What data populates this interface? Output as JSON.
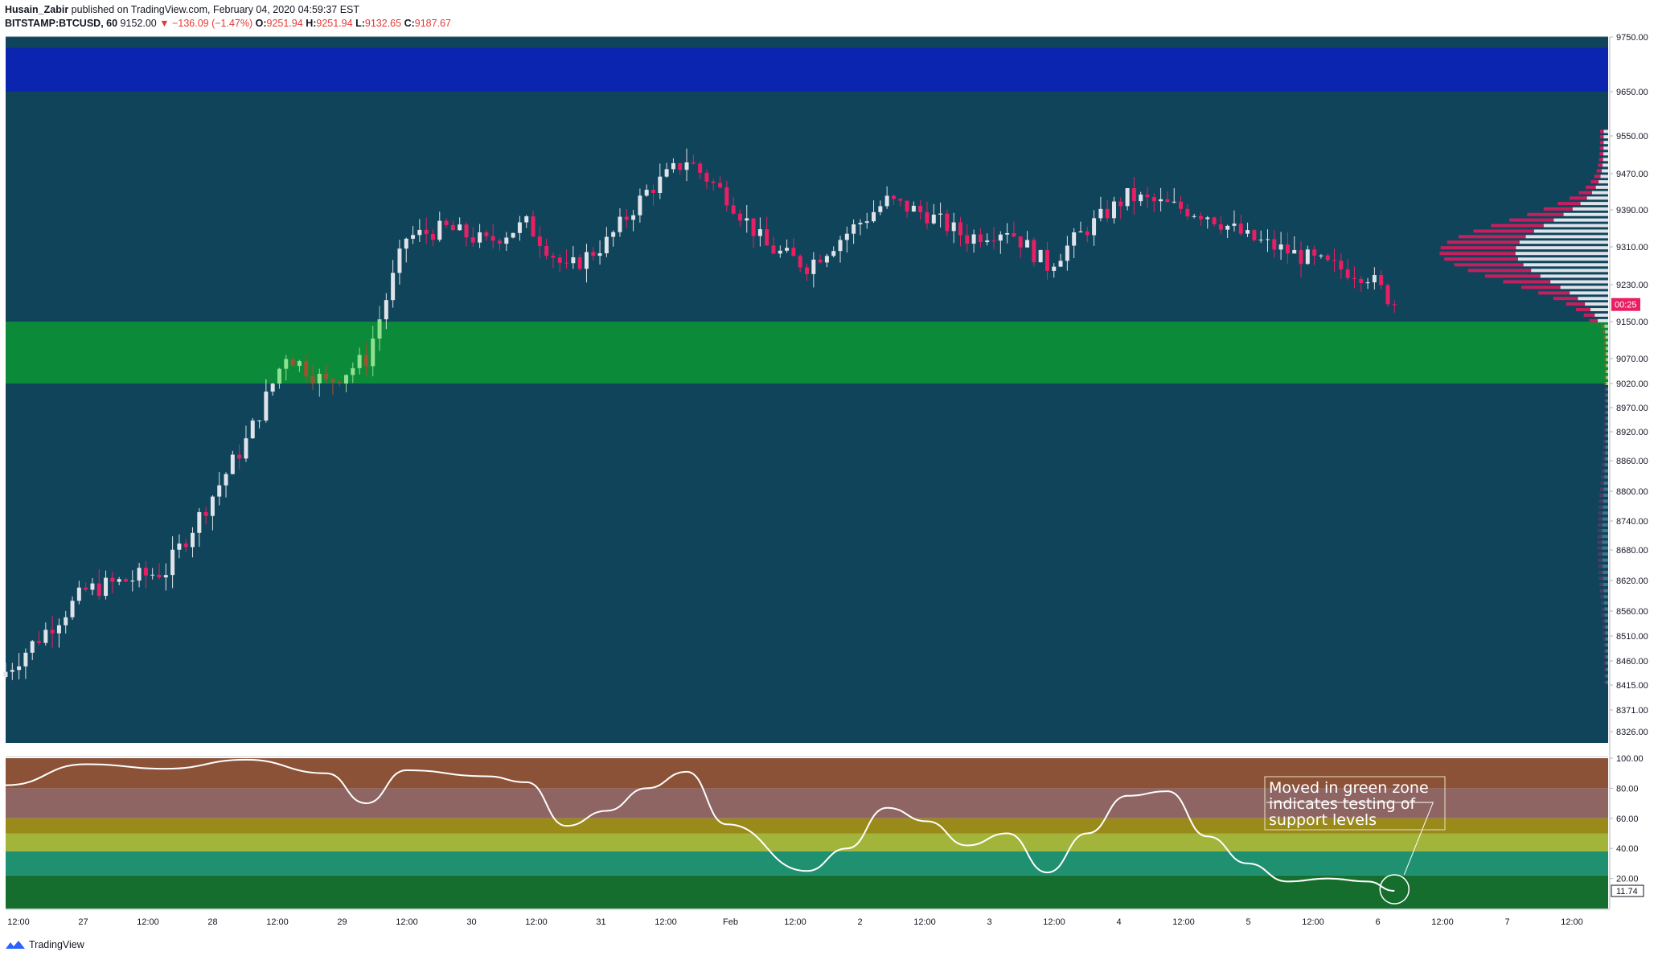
{
  "header": {
    "author": "Husain_Zabir",
    "published_text": "published on TradingView.com, February 04, 2020 04:59:37 EST",
    "symbol": "BITSTAMP:BTCUSD, 60",
    "last": "9152.00",
    "change_arrow": "▼",
    "change": "−136.09 (−1.47%)",
    "o_label": "O:",
    "o": "9251.94",
    "h_label": "H:",
    "h": "9251.94",
    "l_label": "L:",
    "l": "9132.65",
    "c_label": "C:",
    "c": "9187.67"
  },
  "footer": {
    "brand": "TradingView"
  },
  "colors": {
    "background": "#10445a",
    "up": "#dfe3ea",
    "down": "#e91e63",
    "blue_zone": "#0b25b0",
    "green_zone": "#0b8a3a",
    "current_price_tag": "#e91e63"
  },
  "chart_data": [
    {
      "type": "candlestick",
      "title": "",
      "y_ticks": [
        "9750.00",
        "9650.00",
        "9550.00",
        "9470.00",
        "9390.00",
        "9310.00",
        "9230.00",
        "9150.00",
        "9070.00",
        "9020.00",
        "8970.00",
        "8920.00",
        "8860.00",
        "8800.00",
        "8740.00",
        "8680.00",
        "8620.00",
        "8560.00",
        "8510.00",
        "8460.00",
        "8415.00",
        "8371.00",
        "8326.00"
      ],
      "x_ticks": [
        "12:00",
        "27",
        "12:00",
        "28",
        "12:00",
        "29",
        "12:00",
        "30",
        "12:00",
        "31",
        "12:00",
        "Feb",
        "12:00",
        "2",
        "12:00",
        "3",
        "12:00",
        "4",
        "12:00",
        "5",
        "12:00",
        "6",
        "12:00",
        "7",
        "12:00"
      ],
      "ylim": [
        8326,
        9750
      ],
      "current_price_label": "00:25",
      "zones": [
        {
          "name": "resistance zone",
          "color": "#0b25b0",
          "from": 9650,
          "to": 9730
        },
        {
          "name": "support zone",
          "color": "#0b8a3a",
          "from": 9020,
          "to": 9150
        }
      ],
      "close_series_approx": [
        {
          "t": "Jan 26 12:00",
          "close": 8440
        },
        {
          "t": "Jan 27 00:00",
          "close": 8600
        },
        {
          "t": "Jan 27 12:00",
          "close": 8640
        },
        {
          "t": "Jan 28 00:00",
          "close": 8900
        },
        {
          "t": "Jan 28 06:00",
          "close": 9080
        },
        {
          "t": "Jan 28 12:00",
          "close": 9020
        },
        {
          "t": "Jan 28 18:00",
          "close": 9070
        },
        {
          "t": "Jan 29 00:00",
          "close": 9330
        },
        {
          "t": "Jan 29 06:00",
          "close": 9350
        },
        {
          "t": "Jan 29 12:00",
          "close": 9320
        },
        {
          "t": "Jan 29 18:00",
          "close": 9360
        },
        {
          "t": "Jan 30 00:00",
          "close": 9260
        },
        {
          "t": "Jan 30 06:00",
          "close": 9320
        },
        {
          "t": "Jan 30 12:00",
          "close": 9430
        },
        {
          "t": "Jan 30 18:00",
          "close": 9500
        },
        {
          "t": "Jan 31 00:00",
          "close": 9420
        },
        {
          "t": "Jan 31 06:00",
          "close": 9310
        },
        {
          "t": "Jan 31 12:00",
          "close": 9270
        },
        {
          "t": "Jan 31 18:00",
          "close": 9340
        },
        {
          "t": "Feb 1 00:00",
          "close": 9410
        },
        {
          "t": "Feb 1 06:00",
          "close": 9380
        },
        {
          "t": "Feb 1 12:00",
          "close": 9330
        },
        {
          "t": "Feb 1 18:00",
          "close": 9350
        },
        {
          "t": "Feb 2 00:00",
          "close": 9270
        },
        {
          "t": "Feb 2 06:00",
          "close": 9350
        },
        {
          "t": "Feb 2 12:00",
          "close": 9420
        },
        {
          "t": "Feb 2 18:00",
          "close": 9400
        },
        {
          "t": "Feb 3 00:00",
          "close": 9380
        },
        {
          "t": "Feb 3 06:00",
          "close": 9330
        },
        {
          "t": "Feb 3 12:00",
          "close": 9300
        },
        {
          "t": "Feb 3 18:00",
          "close": 9270
        },
        {
          "t": "Feb 4 00:00",
          "close": 9250
        },
        {
          "t": "Feb 4 04:00",
          "close": 9187
        }
      ]
    },
    {
      "type": "line",
      "title": "",
      "y_ticks": [
        "100.00",
        "80.00",
        "60.00",
        "40.00",
        "20.00"
      ],
      "ylim": [
        0,
        100
      ],
      "current_value_label": "11.74",
      "bands": [
        {
          "from": 80,
          "to": 100,
          "color": "#8c5238"
        },
        {
          "from": 60,
          "to": 80,
          "color": "#8e6563"
        },
        {
          "from": 50,
          "to": 60,
          "color": "#9a8a1a"
        },
        {
          "from": 38,
          "to": 50,
          "color": "#a3b43a"
        },
        {
          "from": 22,
          "to": 38,
          "color": "#1f9070"
        },
        {
          "from": 0,
          "to": 22,
          "color": "#166e2e"
        }
      ],
      "series": [
        {
          "values_approx": [
            {
              "t": "Jan 26 12:00",
              "v": 82
            },
            {
              "t": "Jan 27 00:00",
              "v": 96
            },
            {
              "t": "Jan 27 12:00",
              "v": 93
            },
            {
              "t": "Jan 28 00:00",
              "v": 99
            },
            {
              "t": "Jan 28 12:00",
              "v": 90
            },
            {
              "t": "Jan 28 18:00",
              "v": 70
            },
            {
              "t": "Jan 29 00:00",
              "v": 92
            },
            {
              "t": "Jan 29 12:00",
              "v": 88
            },
            {
              "t": "Jan 29 18:00",
              "v": 84
            },
            {
              "t": "Jan 30 00:00",
              "v": 55
            },
            {
              "t": "Jan 30 06:00",
              "v": 65
            },
            {
              "t": "Jan 30 12:00",
              "v": 80
            },
            {
              "t": "Jan 30 18:00",
              "v": 91
            },
            {
              "t": "Jan 31 00:00",
              "v": 56
            },
            {
              "t": "Jan 31 12:00",
              "v": 25
            },
            {
              "t": "Jan 31 18:00",
              "v": 40
            },
            {
              "t": "Feb 1 00:00",
              "v": 67
            },
            {
              "t": "Feb 1 06:00",
              "v": 58
            },
            {
              "t": "Feb 1 12:00",
              "v": 42
            },
            {
              "t": "Feb 1 18:00",
              "v": 50
            },
            {
              "t": "Feb 2 00:00",
              "v": 24
            },
            {
              "t": "Feb 2 06:00",
              "v": 50
            },
            {
              "t": "Feb 2 12:00",
              "v": 75
            },
            {
              "t": "Feb 2 18:00",
              "v": 78
            },
            {
              "t": "Feb 3 00:00",
              "v": 48
            },
            {
              "t": "Feb 3 06:00",
              "v": 30
            },
            {
              "t": "Feb 3 12:00",
              "v": 18
            },
            {
              "t": "Feb 3 18:00",
              "v": 20
            },
            {
              "t": "Feb 4 00:00",
              "v": 18
            },
            {
              "t": "Feb 4 04:00",
              "v": 11.74
            }
          ]
        }
      ],
      "annotation": "Moved in green zone indicates testing of support levels"
    }
  ]
}
